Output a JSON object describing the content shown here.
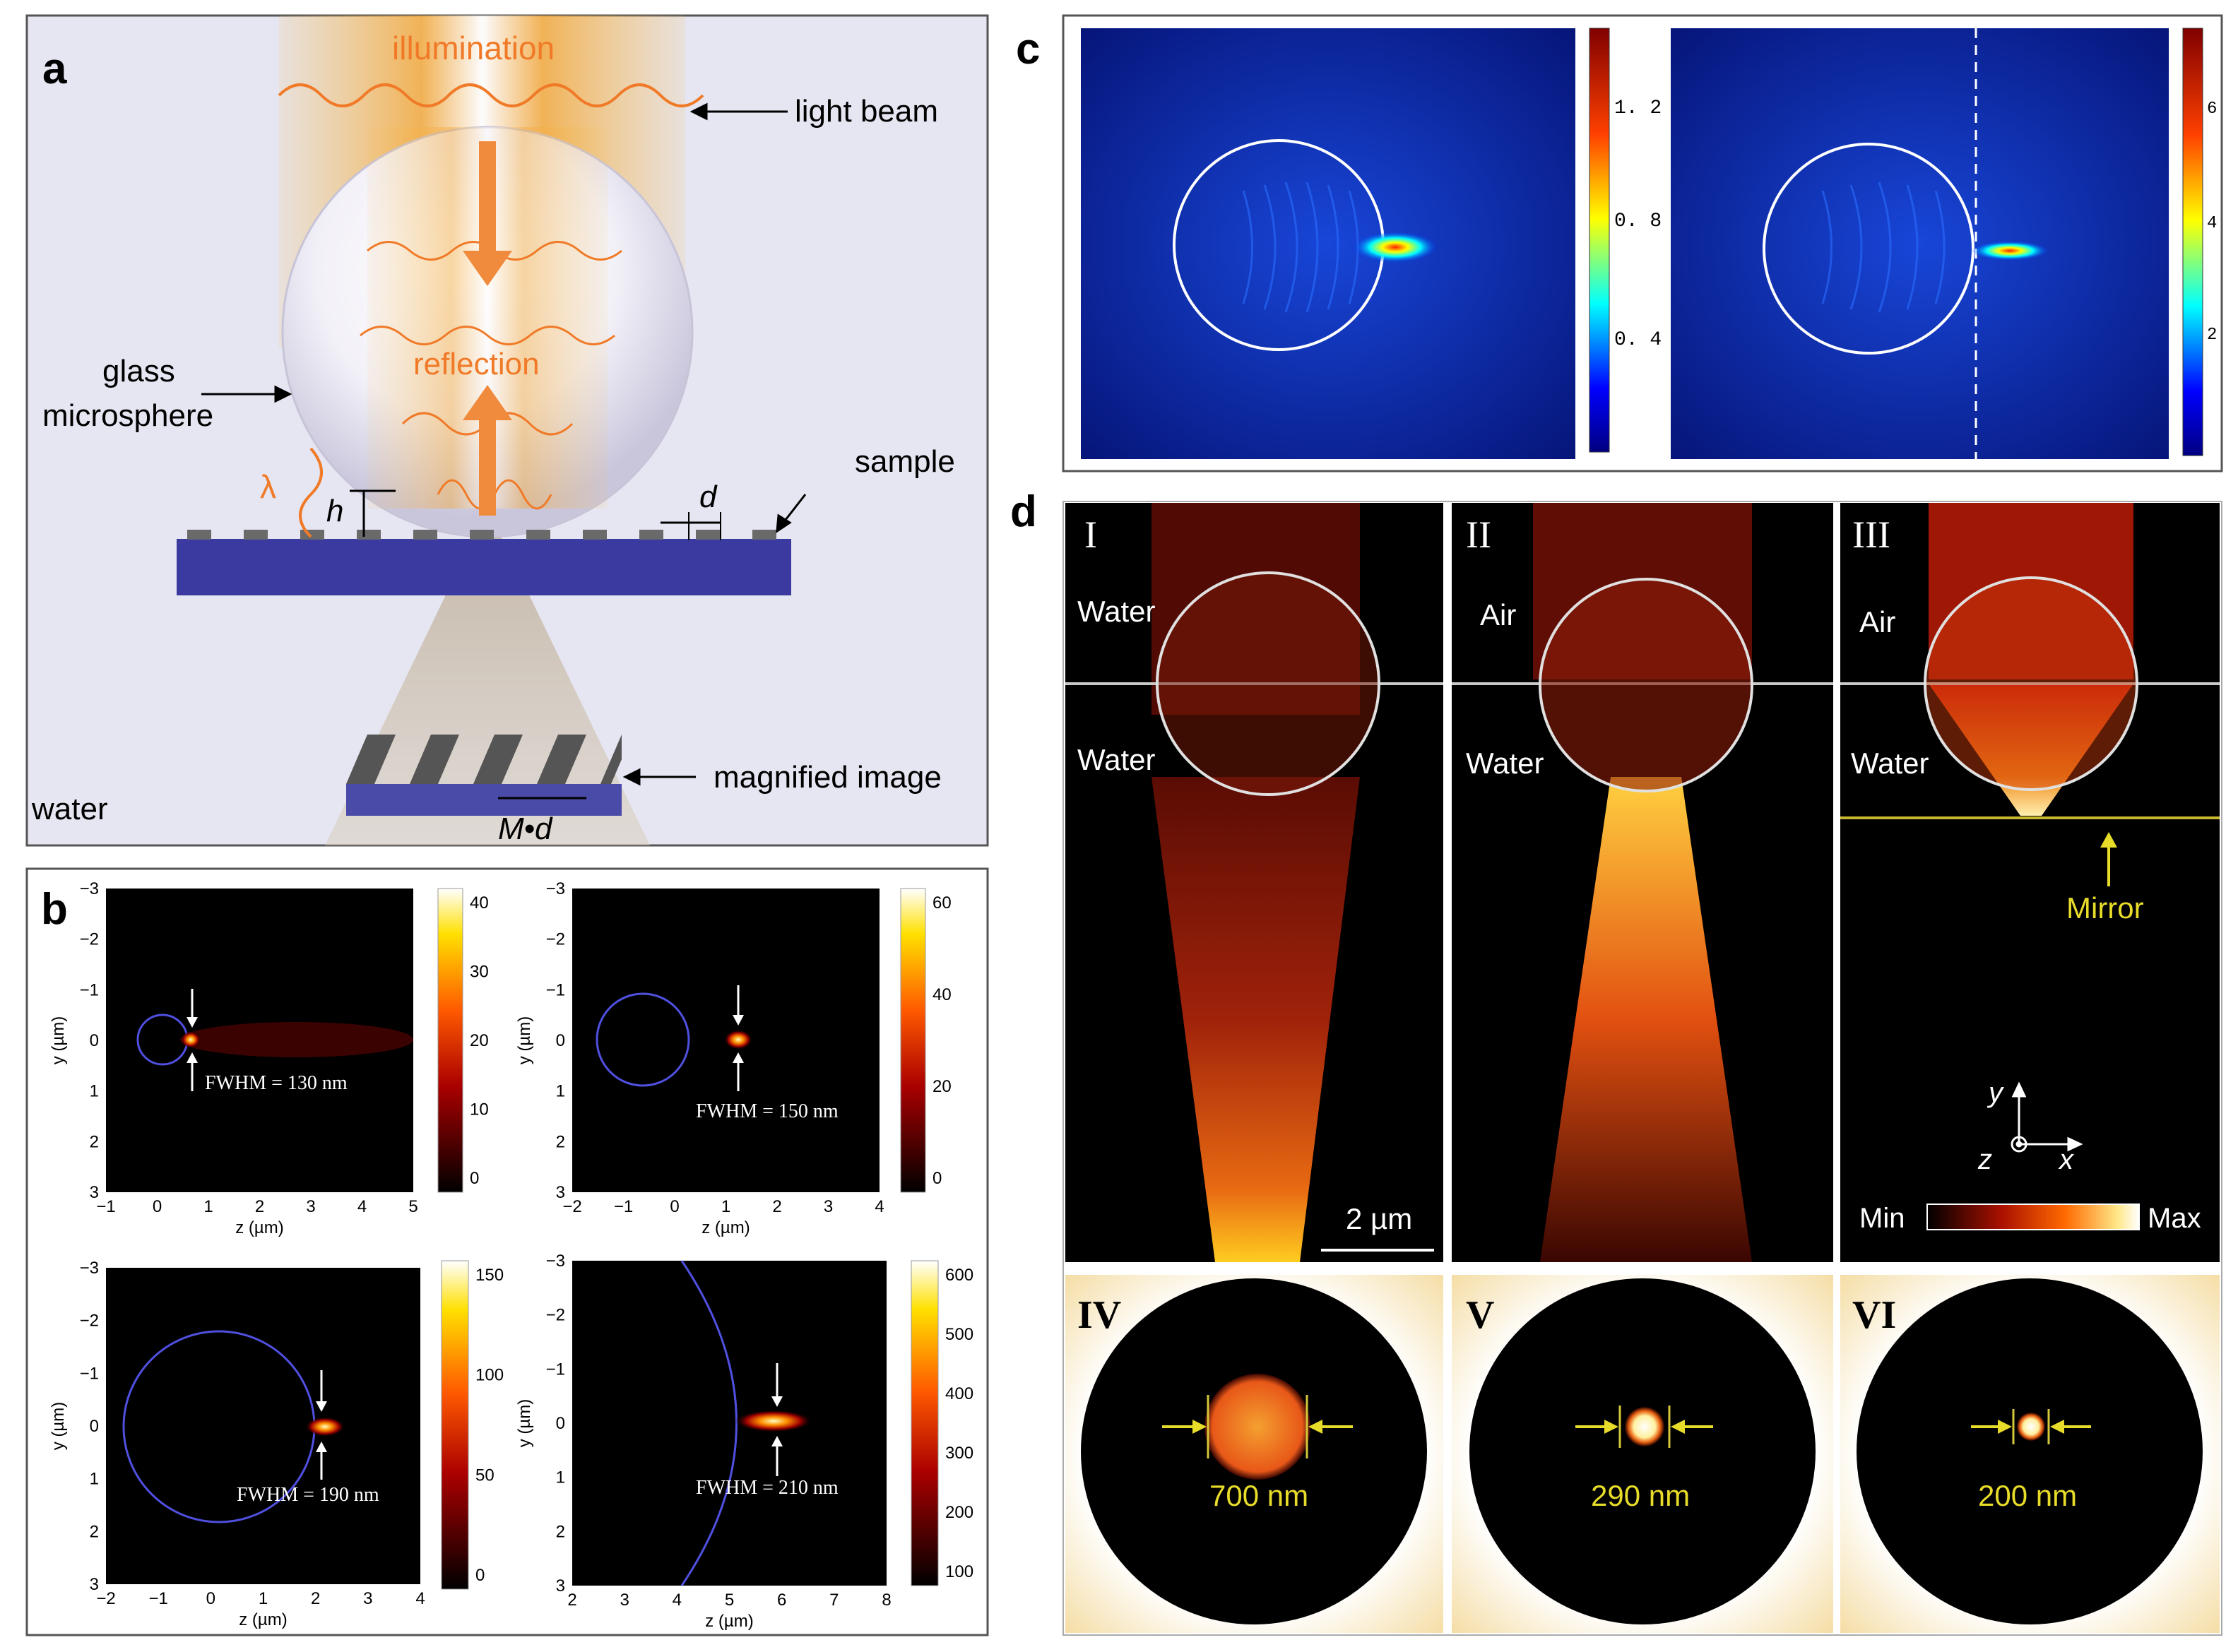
{
  "panel_a": {
    "label": "a",
    "illumination": "illumination",
    "light_beam": "light beam",
    "reflection": "reflection",
    "glass": "glass",
    "microsphere": "microsphere",
    "sample": "sample",
    "lambda": "λ",
    "h": "h",
    "d": "d",
    "magnified_image": "magnified image",
    "water": "water",
    "md": "M•d"
  },
  "panel_b": {
    "label": "b",
    "plots": [
      {
        "fwhm": "FWHM = 130 nm",
        "xlabel": "z (µm)",
        "ylabel": "y (µm)",
        "xticks": [
          "−1",
          "0",
          "1",
          "2",
          "3",
          "4",
          "5"
        ],
        "yticks": [
          "−3",
          "−2",
          "−1",
          "0",
          "1",
          "2",
          "3"
        ],
        "cbar_ticks": [
          "40",
          "30",
          "20",
          "10",
          "0"
        ]
      },
      {
        "fwhm": "FWHM = 150 nm",
        "xlabel": "z (µm)",
        "ylabel": "y (µm)",
        "xticks": [
          "−2",
          "−1",
          "0",
          "1",
          "2",
          "3",
          "4"
        ],
        "yticks": [
          "−3",
          "−2",
          "−1",
          "0",
          "1",
          "2",
          "3"
        ],
        "cbar_ticks": [
          "60",
          "40",
          "20",
          "0"
        ]
      },
      {
        "fwhm": "FWHM = 190 nm",
        "xlabel": "z (µm)",
        "ylabel": "y (µm)",
        "xticks": [
          "−2",
          "−1",
          "0",
          "1",
          "2",
          "3",
          "4"
        ],
        "yticks": [
          "−3",
          "−2",
          "−1",
          "0",
          "1",
          "2",
          "3"
        ],
        "cbar_ticks": [
          "150",
          "100",
          "50",
          "0"
        ]
      },
      {
        "fwhm": "FWHM = 210 nm",
        "xlabel": "z (µm)",
        "ylabel": "y (µm)",
        "xticks": [
          "2",
          "3",
          "4",
          "5",
          "6",
          "7",
          "8"
        ],
        "yticks": [
          "−3",
          "−2",
          "−1",
          "0",
          "1",
          "2",
          "3"
        ],
        "cbar_ticks": [
          "600",
          "500",
          "400",
          "300",
          "200",
          "100"
        ]
      }
    ]
  },
  "panel_c": {
    "label": "c",
    "left_cbar": [
      "1. 2",
      "0. 8",
      "0. 4"
    ],
    "right_cbar": [
      "6",
      "4",
      "2"
    ]
  },
  "panel_d": {
    "label": "d",
    "roman": [
      "I",
      "II",
      "III",
      "IV",
      "V",
      "VI"
    ],
    "I_top": "Water",
    "I_bottom": "Water",
    "II_top": "Air",
    "II_bottom": "Water",
    "III_top": "Air",
    "III_bottom": "Water",
    "mirror": "Mirror",
    "scale": "2 µm",
    "axis_y": "y",
    "axis_x": "x",
    "axis_z": "z",
    "min": "Min",
    "max": "Max",
    "spot_IV": "700 nm",
    "spot_V": "290 nm",
    "spot_VI": "200 nm"
  },
  "colors": {
    "panel_a_bg": "#e6e6f2",
    "substrate": "#3a3aa0",
    "beam_orange": "#f08a3c",
    "field_blue": "#0a1a8c",
    "spot_yellow": "#e8dc2a"
  }
}
